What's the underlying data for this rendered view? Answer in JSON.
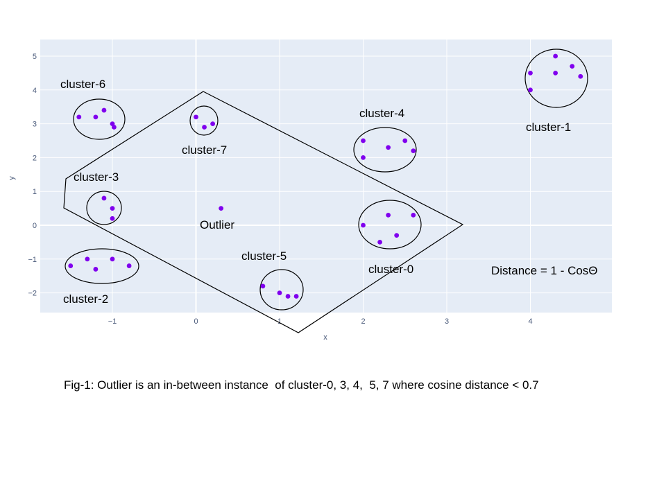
{
  "chart_data": {
    "type": "scatter",
    "title": "",
    "xlabel": "x",
    "ylabel": "y",
    "xlim": [
      -1.85,
      5.0
    ],
    "ylim": [
      -2.55,
      5.5
    ],
    "xticks": [
      -1,
      0,
      1,
      2,
      3,
      4
    ],
    "yticks": [
      -2,
      -1,
      0,
      1,
      2,
      3,
      4,
      5
    ],
    "xtick_labels": [
      "−1",
      "0",
      "1",
      "2",
      "3",
      "4"
    ],
    "ytick_labels": [
      "−2",
      "−1",
      "0",
      "1",
      "2",
      "3",
      "4",
      "5"
    ],
    "grid": true,
    "colors": {
      "plot_bg": "#e5ecf6",
      "grid": "#ffffff",
      "marker": "#8000ee",
      "annotation": "#000000"
    },
    "points": [
      {
        "x": 4.3,
        "y": 5.0
      },
      {
        "x": 4.0,
        "y": 4.5
      },
      {
        "x": 4.3,
        "y": 4.5
      },
      {
        "x": 4.5,
        "y": 4.7
      },
      {
        "x": 4.6,
        "y": 4.4
      },
      {
        "x": 4.0,
        "y": 4.0
      },
      {
        "x": -1.4,
        "y": 3.2
      },
      {
        "x": -1.2,
        "y": 3.2
      },
      {
        "x": -1.1,
        "y": 3.4
      },
      {
        "x": -1.0,
        "y": 3.0
      },
      {
        "x": -0.98,
        "y": 2.9
      },
      {
        "x": 0.0,
        "y": 3.2
      },
      {
        "x": 0.1,
        "y": 2.9
      },
      {
        "x": 0.2,
        "y": 3.0
      },
      {
        "x": 2.0,
        "y": 2.5
      },
      {
        "x": 2.3,
        "y": 2.3
      },
      {
        "x": 2.5,
        "y": 2.5
      },
      {
        "x": 2.6,
        "y": 2.2
      },
      {
        "x": 2.0,
        "y": 2.0
      },
      {
        "x": -1.1,
        "y": 0.8
      },
      {
        "x": -1.0,
        "y": 0.5
      },
      {
        "x": -1.0,
        "y": 0.2
      },
      {
        "x": 0.3,
        "y": 0.5
      },
      {
        "x": 2.3,
        "y": 0.3
      },
      {
        "x": 2.6,
        "y": 0.3
      },
      {
        "x": 2.0,
        "y": 0.0
      },
      {
        "x": 2.2,
        "y": -0.5
      },
      {
        "x": 2.4,
        "y": -0.3
      },
      {
        "x": -1.5,
        "y": -1.2
      },
      {
        "x": -1.3,
        "y": -1.0
      },
      {
        "x": -1.2,
        "y": -1.3
      },
      {
        "x": -1.0,
        "y": -1.0
      },
      {
        "x": -0.8,
        "y": -1.2
      },
      {
        "x": 0.8,
        "y": -1.8
      },
      {
        "x": 1.0,
        "y": -2.0
      },
      {
        "x": 1.1,
        "y": -2.1
      },
      {
        "x": 1.2,
        "y": -2.1
      }
    ],
    "annotations": {
      "cluster_1": "cluster-1",
      "cluster_6": "cluster-6",
      "cluster_7": "cluster-7",
      "cluster_4": "cluster-4",
      "cluster_3": "cluster-3",
      "outlier": "Outlier",
      "cluster_0": "cluster-0",
      "cluster_5": "cluster-5",
      "cluster_2": "cluster-2",
      "distance": "Distance = 1 - CosΘ"
    },
    "caption": "Fig-1: Outlier is an in-between instance  of cluster-0, 3, 4,  5, 7 where cosine distance < 0.7"
  }
}
